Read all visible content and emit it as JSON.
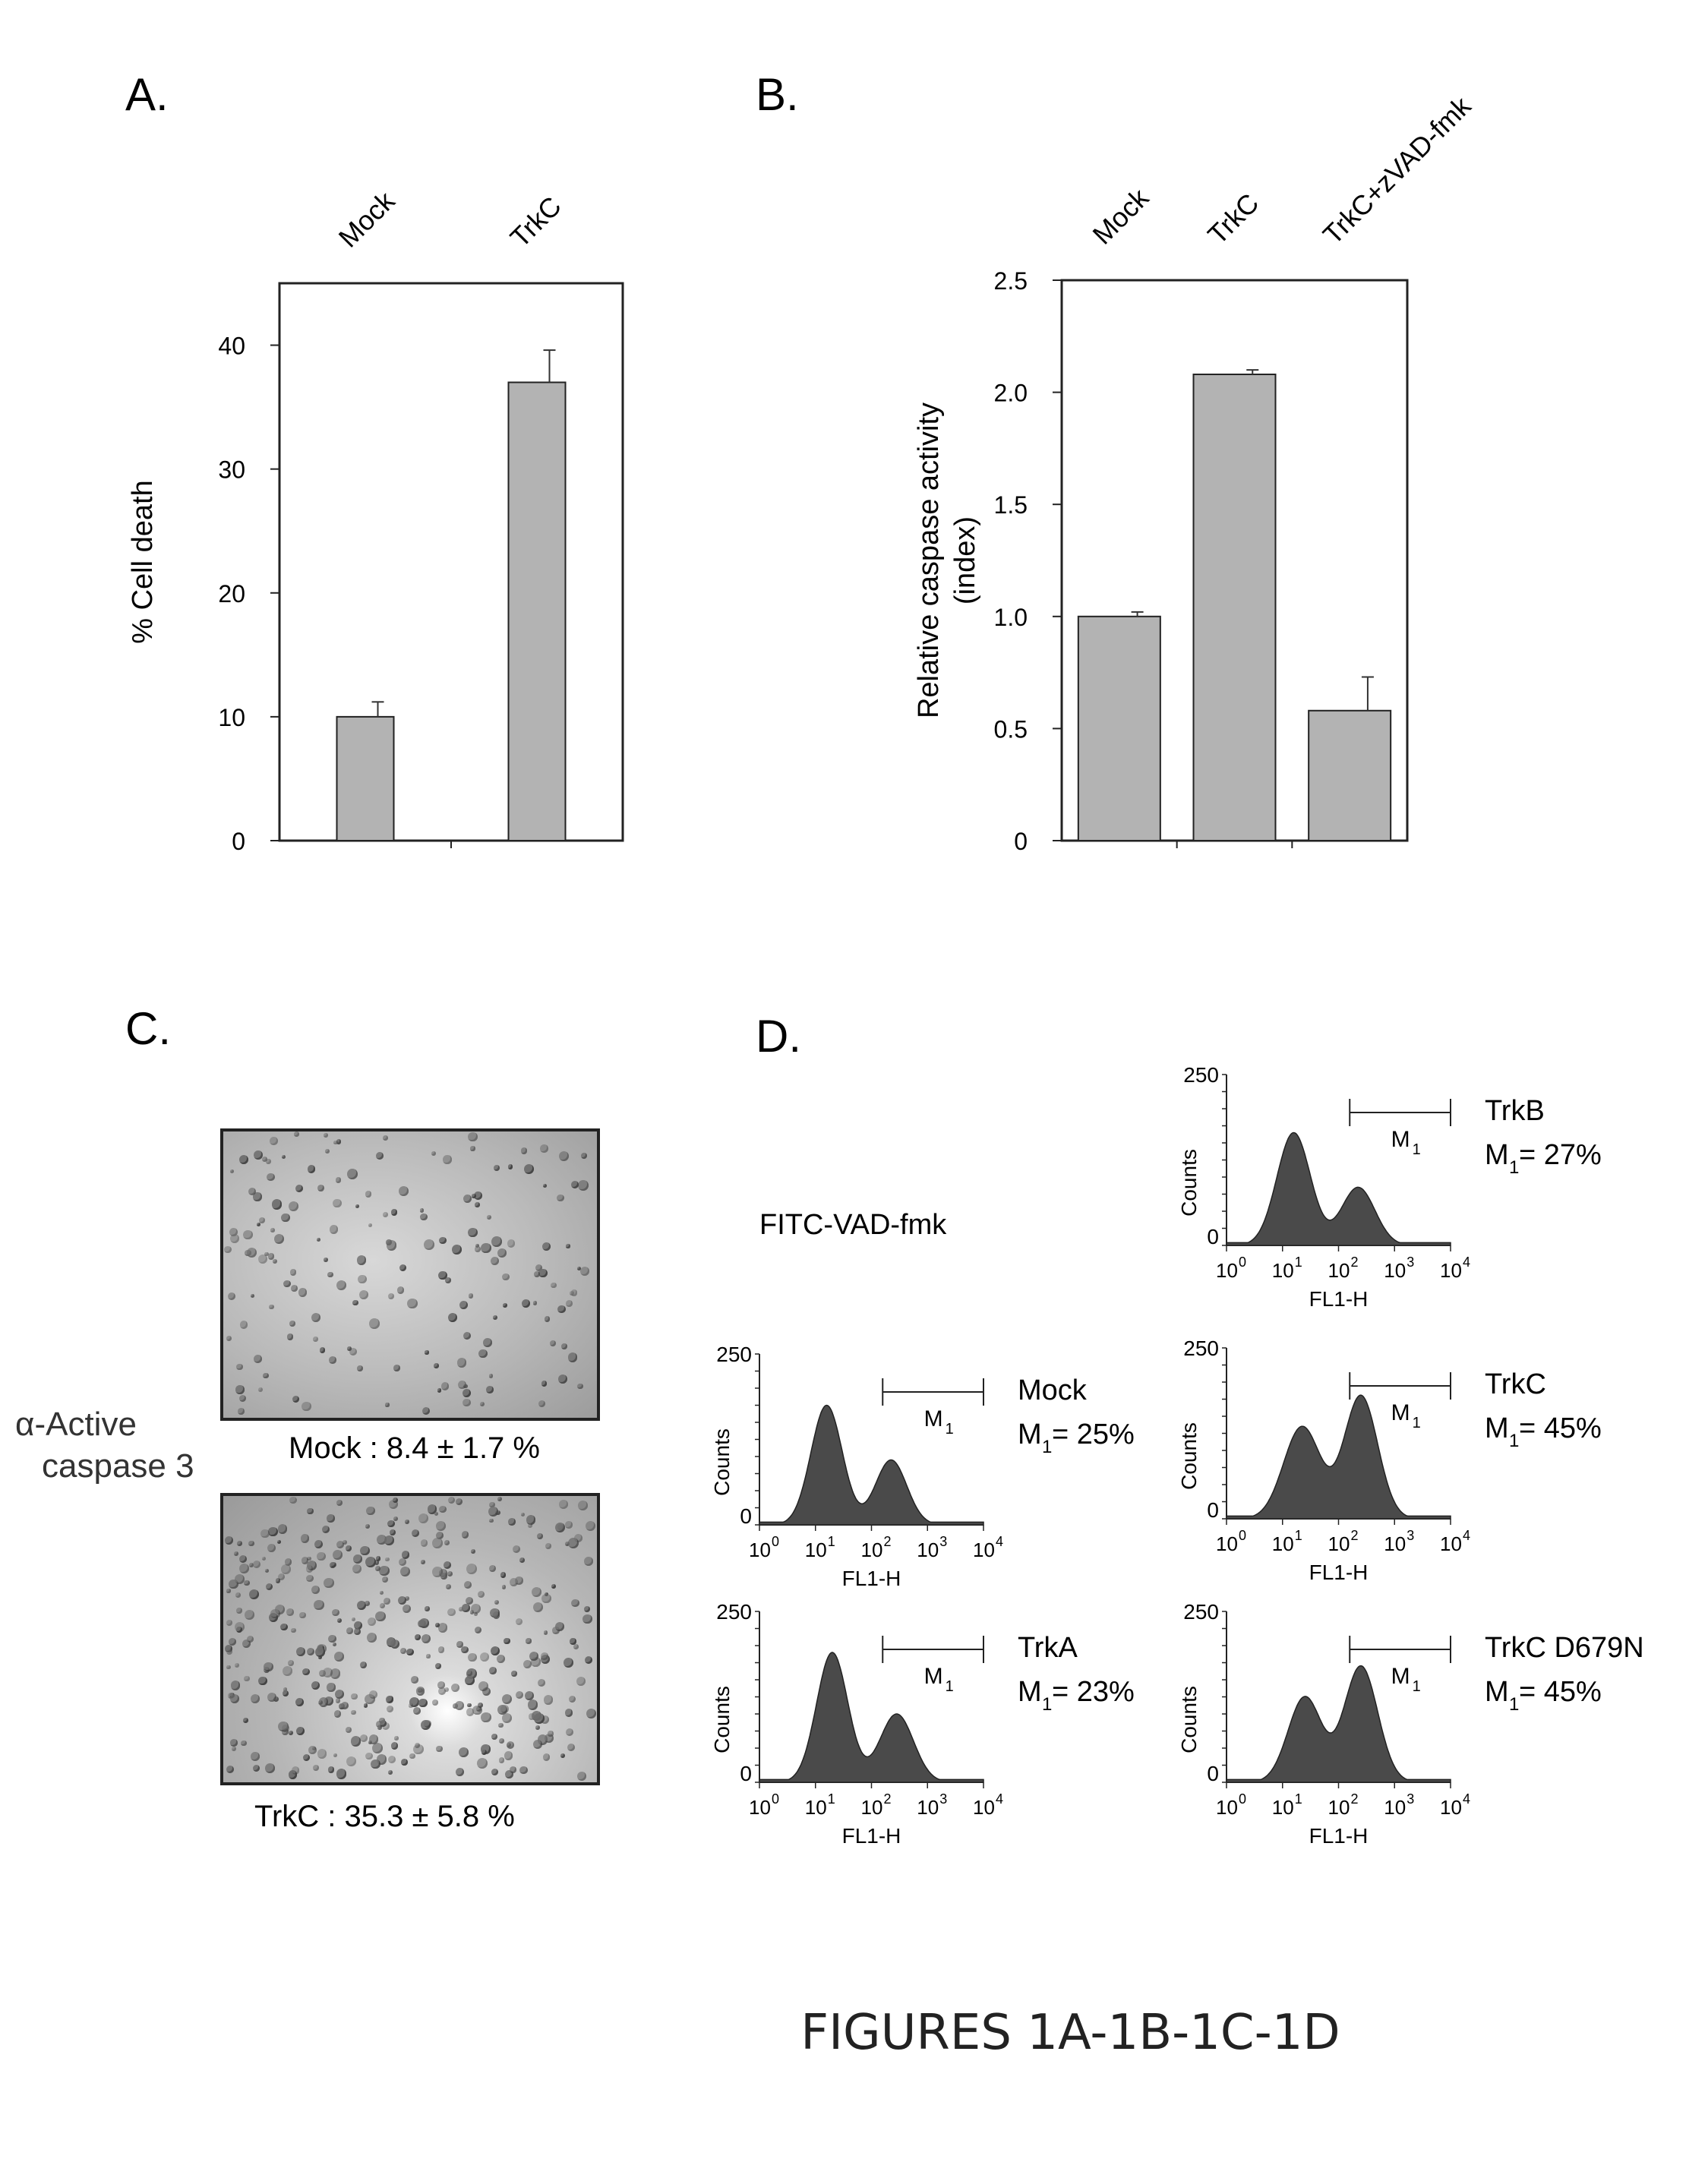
{
  "panels": {
    "A": "A.",
    "B": "B.",
    "C": "C.",
    "D": "D."
  },
  "caption": "FIGURES 1A-1B-1C-1D",
  "chart_data": [
    {
      "id": "A",
      "type": "bar",
      "categories": [
        "Mock",
        "TrkC"
      ],
      "values": [
        10,
        37
      ],
      "errors": [
        1.2,
        2.6
      ],
      "ylabel": "% Cell death",
      "ylim": [
        0,
        45
      ],
      "yticks": [
        "0",
        "10",
        "20",
        "30",
        "40"
      ],
      "ytick_values": [
        0,
        10,
        20,
        30,
        40
      ],
      "grid": false,
      "bar_color": "#b3b3b3"
    },
    {
      "id": "B",
      "type": "bar",
      "categories": [
        "Mock",
        "TrkC",
        "TrkC+zVAD-fmk"
      ],
      "values": [
        1.0,
        2.08,
        0.58
      ],
      "errors": [
        0.02,
        0.02,
        0.15
      ],
      "ylabel": [
        "Relative caspase activity",
        "(index)"
      ],
      "ylim": [
        0,
        2.5
      ],
      "yticks": [
        "0",
        "0.5",
        "1.0",
        "1.5",
        "2.0",
        "2.5"
      ],
      "ytick_values": [
        0,
        0.5,
        1.0,
        1.5,
        2.0,
        2.5
      ],
      "grid": false,
      "bar_color": "#b3b3b3"
    },
    {
      "id": "D",
      "type": "area",
      "title": "FITC-VAD-fmk",
      "xlabel": "FL1-H",
      "ylabel": "Counts",
      "ytick_labels": [
        "0",
        "250"
      ],
      "xtick_bases": [
        "10",
        "10",
        "10",
        "10",
        "10"
      ],
      "xtick_exponents": [
        "0",
        "1",
        "2",
        "3",
        "4"
      ],
      "xlim_log10": [
        0,
        4
      ],
      "ylim": [
        0,
        250
      ],
      "gate": {
        "label": "M",
        "subscript": "1",
        "from_log10": 2.2,
        "to_log10": 4.0
      },
      "histograms": [
        {
          "sample": "TrkB",
          "gate_text": "M",
          "gate_sub": "1",
          "gate_value": " = 27%",
          "peaks": [
            {
              "pos_log10": 1.2,
              "height": 165,
              "width": 0.3
            },
            {
              "pos_log10": 2.35,
              "height": 85,
              "width": 0.3
            }
          ]
        },
        {
          "sample": "Mock",
          "gate_text": "M",
          "gate_sub": "1",
          "gate_value": " = 25%",
          "peaks": [
            {
              "pos_log10": 1.2,
              "height": 175,
              "width": 0.28
            },
            {
              "pos_log10": 2.35,
              "height": 95,
              "width": 0.28
            }
          ]
        },
        {
          "sample": "TrkC",
          "gate_text": "M",
          "gate_sub": "1",
          "gate_value": " = 45%",
          "peaks": [
            {
              "pos_log10": 1.35,
              "height": 135,
              "width": 0.33
            },
            {
              "pos_log10": 2.4,
              "height": 180,
              "width": 0.3
            }
          ]
        },
        {
          "sample": "TrkA",
          "gate_text": "M",
          "gate_sub": "1",
          "gate_value": " = 23%",
          "peaks": [
            {
              "pos_log10": 1.3,
              "height": 190,
              "width": 0.28
            },
            {
              "pos_log10": 2.45,
              "height": 100,
              "width": 0.3
            }
          ]
        },
        {
          "sample": "TrkC D679N",
          "gate_text": "M",
          "gate_sub": "1",
          "gate_value": " = 45%",
          "peaks": [
            {
              "pos_log10": 1.4,
              "height": 125,
              "width": 0.3
            },
            {
              "pos_log10": 2.4,
              "height": 170,
              "width": 0.3
            }
          ]
        }
      ]
    }
  ],
  "microscopy": {
    "row_label": [
      "α-Active",
      "caspase 3"
    ],
    "images": [
      {
        "caption": "Mock : 8.4 ± 1.7 %"
      },
      {
        "caption": "TrkC : 35.3 ± 5.8 %"
      }
    ]
  }
}
